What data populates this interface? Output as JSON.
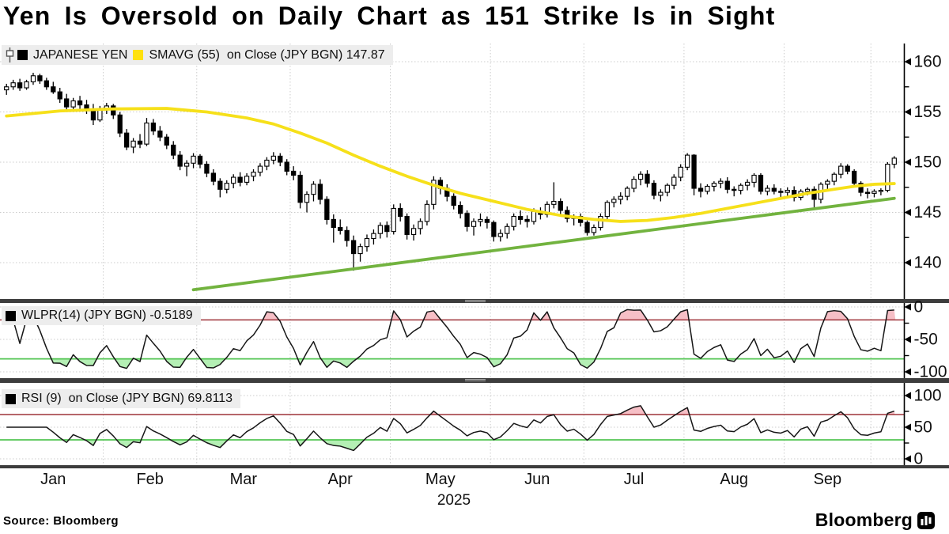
{
  "title": "Yen Is Oversold on Daily Chart as 151 Strike Is in Sight",
  "source": "Source: Bloomberg",
  "logo": "Bloomberg",
  "panels": {
    "main": {
      "legend_price": "JAPANESE YEN",
      "legend_smavg": "SMAVG (55)  on Close (JPY BGN) 147.87",
      "yticks": [
        160,
        155,
        150,
        145,
        140
      ],
      "yticks_minor": [
        157.5,
        152.5,
        147.5,
        142.5
      ]
    },
    "wlpr": {
      "legend": "WLPR(14) (JPY BGN) -0.5189",
      "yticks": [
        0,
        -50,
        -100
      ],
      "yticks_minor": [
        -25,
        -75
      ],
      "overbought": -20,
      "oversold": -80
    },
    "rsi": {
      "legend": "RSI (9)  on Close (JPY BGN) 69.8113",
      "yticks": [
        100,
        50,
        0
      ],
      "yticks_minor": [
        75,
        25
      ],
      "overbought": 70,
      "oversold": 30
    }
  },
  "x_axis": {
    "months": [
      "Jan",
      "Feb",
      "Mar",
      "Apr",
      "May",
      "Jun",
      "Jul",
      "Aug",
      "Sep"
    ],
    "year": "2025",
    "month_start_idx": [
      0,
      15,
      29,
      43,
      58,
      73,
      87,
      102,
      117,
      130
    ]
  },
  "colors": {
    "candle_up": "#ffffff",
    "candle_down": "#000000",
    "candle_stroke": "#000000",
    "smavg": "#f6e01a",
    "trendline": "#72b33f",
    "indicator_line": "#161616",
    "overbought_line": "#9e3339",
    "oversold_line": "#52c452",
    "overbought_fill": "#f6bfc6",
    "oversold_fill": "#b4efb4",
    "grid": "#cccccc",
    "legend_bg": "#ededed",
    "separator": "#3d3d3d"
  },
  "chart_data": [
    {
      "type": "candlestick",
      "name": "JAPANESE YEN (JPY BGN), daily, Jan 2025 - early Oct 2025",
      "ylim": [
        136.5,
        161.8
      ],
      "yticks": [
        140,
        145,
        150,
        155,
        160
      ],
      "ohlc": [
        [
          157.2,
          157.8,
          156.7,
          157.5
        ],
        [
          157.5,
          158.2,
          157.2,
          157.9
        ],
        [
          157.9,
          158.3,
          157.1,
          157.4
        ],
        [
          157.4,
          158.2,
          157.2,
          158.0
        ],
        [
          158.0,
          158.9,
          157.7,
          158.6
        ],
        [
          158.6,
          158.8,
          157.8,
          158.1
        ],
        [
          158.1,
          158.4,
          157.2,
          157.5
        ],
        [
          157.5,
          158.0,
          156.8,
          157.0
        ],
        [
          157.0,
          157.4,
          155.9,
          156.3
        ],
        [
          156.3,
          156.8,
          155.2,
          155.5
        ],
        [
          155.5,
          156.4,
          155.1,
          156.1
        ],
        [
          156.1,
          156.6,
          155.3,
          155.7
        ],
        [
          155.7,
          156.2,
          154.8,
          155.2
        ],
        [
          155.2,
          155.8,
          153.7,
          154.2
        ],
        [
          154.2,
          155.6,
          154.0,
          155.2
        ],
        [
          155.2,
          155.9,
          154.8,
          155.6
        ],
        [
          155.6,
          155.8,
          154.3,
          154.7
        ],
        [
          154.7,
          155.0,
          152.5,
          152.9
        ],
        [
          152.9,
          153.3,
          151.2,
          151.5
        ],
        [
          151.5,
          152.4,
          150.9,
          152.1
        ],
        [
          152.1,
          152.8,
          151.4,
          151.8
        ],
        [
          151.8,
          154.4,
          151.6,
          153.9
        ],
        [
          153.9,
          154.3,
          152.7,
          153.1
        ],
        [
          153.1,
          153.6,
          152.1,
          152.5
        ],
        [
          152.5,
          152.8,
          151.3,
          151.7
        ],
        [
          151.7,
          152.1,
          150.3,
          150.7
        ],
        [
          150.7,
          151.1,
          149.2,
          149.6
        ],
        [
          149.6,
          150.2,
          148.6,
          149.9
        ],
        [
          149.9,
          150.9,
          149.4,
          150.6
        ],
        [
          150.6,
          150.8,
          149.4,
          149.8
        ],
        [
          149.8,
          150.1,
          148.5,
          148.9
        ],
        [
          148.9,
          149.3,
          147.7,
          148.1
        ],
        [
          148.1,
          148.4,
          146.5,
          147.3
        ],
        [
          147.3,
          148.2,
          146.9,
          147.9
        ],
        [
          147.9,
          148.8,
          147.4,
          148.5
        ],
        [
          148.5,
          149.0,
          147.6,
          148.0
        ],
        [
          148.0,
          148.9,
          147.7,
          148.6
        ],
        [
          148.6,
          149.3,
          148.1,
          149.0
        ],
        [
          149.0,
          149.9,
          148.6,
          149.6
        ],
        [
          149.6,
          150.5,
          149.2,
          150.2
        ],
        [
          150.2,
          151.0,
          149.8,
          150.6
        ],
        [
          150.6,
          150.9,
          149.6,
          150.0
        ],
        [
          150.0,
          150.3,
          148.7,
          149.1
        ],
        [
          149.1,
          149.6,
          148.2,
          148.7
        ],
        [
          148.7,
          149.1,
          145.4,
          146.0
        ],
        [
          146.0,
          147.1,
          145.0,
          146.8
        ],
        [
          146.8,
          148.1,
          146.1,
          147.8
        ],
        [
          147.8,
          148.3,
          145.8,
          146.3
        ],
        [
          146.3,
          146.6,
          143.8,
          144.3
        ],
        [
          144.3,
          144.8,
          142.0,
          143.5
        ],
        [
          143.5,
          144.3,
          142.8,
          143.2
        ],
        [
          143.2,
          143.6,
          141.6,
          142.2
        ],
        [
          142.2,
          142.7,
          139.2,
          140.9
        ],
        [
          140.9,
          141.9,
          140.1,
          141.6
        ],
        [
          141.6,
          142.8,
          141.1,
          142.4
        ],
        [
          142.4,
          143.3,
          141.8,
          142.9
        ],
        [
          142.9,
          144.0,
          142.4,
          143.7
        ],
        [
          143.7,
          144.1,
          142.5,
          143.1
        ],
        [
          143.1,
          145.8,
          142.8,
          145.4
        ],
        [
          145.4,
          145.9,
          144.1,
          144.6
        ],
        [
          144.6,
          144.9,
          142.3,
          142.8
        ],
        [
          142.8,
          143.8,
          142.2,
          143.4
        ],
        [
          143.4,
          144.4,
          142.8,
          144.1
        ],
        [
          144.1,
          146.2,
          143.7,
          145.8
        ],
        [
          145.8,
          148.6,
          145.3,
          148.2
        ],
        [
          148.2,
          148.5,
          146.8,
          147.4
        ],
        [
          147.4,
          147.8,
          146.1,
          146.6
        ],
        [
          146.6,
          146.9,
          145.3,
          145.7
        ],
        [
          145.7,
          146.1,
          144.4,
          144.9
        ],
        [
          144.9,
          145.2,
          143.1,
          143.6
        ],
        [
          143.6,
          144.4,
          142.7,
          144.1
        ],
        [
          144.1,
          144.9,
          143.6,
          144.3
        ],
        [
          144.3,
          144.6,
          143.4,
          144.0
        ],
        [
          144.0,
          144.2,
          142.1,
          142.6
        ],
        [
          142.6,
          143.3,
          142.1,
          142.9
        ],
        [
          142.9,
          143.9,
          142.4,
          143.6
        ],
        [
          143.6,
          144.9,
          143.2,
          144.6
        ],
        [
          144.6,
          145.2,
          143.8,
          144.3
        ],
        [
          144.3,
          144.7,
          143.5,
          144.1
        ],
        [
          144.1,
          145.4,
          143.8,
          145.1
        ],
        [
          145.1,
          145.5,
          144.3,
          144.8
        ],
        [
          144.8,
          146.1,
          144.5,
          145.8
        ],
        [
          145.8,
          148.0,
          145.4,
          146.1
        ],
        [
          146.1,
          146.4,
          144.8,
          145.2
        ],
        [
          145.2,
          145.6,
          144.0,
          144.4
        ],
        [
          144.4,
          144.8,
          143.7,
          144.6
        ],
        [
          144.6,
          144.9,
          143.6,
          144.0
        ],
        [
          144.0,
          144.2,
          142.7,
          143.0
        ],
        [
          143.0,
          143.8,
          142.7,
          143.5
        ],
        [
          143.5,
          144.9,
          143.2,
          144.6
        ],
        [
          144.6,
          146.2,
          144.3,
          146.0
        ],
        [
          146.0,
          146.6,
          145.5,
          146.3
        ],
        [
          146.3,
          147.0,
          145.8,
          146.6
        ],
        [
          146.6,
          147.6,
          146.2,
          147.4
        ],
        [
          147.4,
          148.6,
          147.0,
          148.3
        ],
        [
          148.3,
          149.1,
          147.7,
          148.8
        ],
        [
          148.8,
          149.2,
          147.5,
          147.9
        ],
        [
          147.9,
          148.2,
          146.3,
          146.7
        ],
        [
          146.7,
          147.3,
          146.1,
          147.0
        ],
        [
          147.0,
          147.9,
          146.6,
          147.7
        ],
        [
          147.7,
          148.8,
          147.3,
          148.5
        ],
        [
          148.5,
          149.8,
          148.1,
          149.5
        ],
        [
          149.5,
          150.9,
          149.2,
          150.7
        ],
        [
          150.7,
          150.8,
          146.7,
          147.4
        ],
        [
          147.4,
          147.9,
          146.5,
          147.1
        ],
        [
          147.1,
          147.8,
          146.8,
          147.6
        ],
        [
          147.6,
          148.1,
          147.1,
          147.9
        ],
        [
          147.9,
          148.4,
          147.4,
          148.1
        ],
        [
          148.1,
          148.5,
          146.9,
          147.3
        ],
        [
          147.3,
          147.6,
          146.6,
          147.2
        ],
        [
          147.2,
          147.9,
          146.8,
          147.7
        ],
        [
          147.7,
          148.3,
          147.2,
          148.0
        ],
        [
          148.0,
          148.9,
          147.5,
          148.7
        ],
        [
          148.7,
          148.9,
          146.8,
          147.1
        ],
        [
          147.1,
          147.7,
          146.7,
          147.4
        ],
        [
          147.4,
          147.8,
          146.8,
          147.1
        ],
        [
          147.1,
          147.4,
          146.4,
          147.0
        ],
        [
          147.0,
          147.5,
          146.5,
          147.2
        ],
        [
          147.2,
          147.6,
          146.1,
          146.5
        ],
        [
          146.5,
          147.3,
          146.2,
          147.1
        ],
        [
          147.1,
          147.5,
          146.7,
          147.3
        ],
        [
          147.3,
          147.6,
          145.5,
          146.3
        ],
        [
          146.3,
          148.0,
          145.9,
          147.8
        ],
        [
          147.8,
          148.3,
          147.3,
          148.1
        ],
        [
          148.1,
          149.0,
          147.7,
          148.8
        ],
        [
          148.8,
          149.9,
          148.4,
          149.6
        ],
        [
          149.6,
          149.8,
          148.8,
          149.1
        ],
        [
          149.1,
          149.3,
          147.5,
          147.9
        ],
        [
          147.9,
          148.1,
          146.6,
          147.0
        ],
        [
          147.0,
          147.4,
          146.4,
          146.9
        ],
        [
          146.9,
          147.3,
          146.5,
          147.1
        ],
        [
          147.1,
          147.4,
          146.7,
          147.2
        ],
        [
          147.2,
          150.0,
          147.0,
          149.8
        ],
        [
          149.8,
          150.6,
          149.4,
          150.4
        ]
      ]
    },
    {
      "type": "line",
      "name": "SMAVG (55) on Close (JPY BGN)",
      "last_value": 147.87,
      "points": [
        [
          0,
          154.6
        ],
        [
          8,
          155.1
        ],
        [
          16,
          155.3
        ],
        [
          24,
          155.35
        ],
        [
          30,
          155.0
        ],
        [
          36,
          154.4
        ],
        [
          40,
          153.8
        ],
        [
          44,
          152.9
        ],
        [
          48,
          151.9
        ],
        [
          52,
          150.7
        ],
        [
          56,
          149.6
        ],
        [
          60,
          148.6
        ],
        [
          64,
          147.7
        ],
        [
          68,
          146.9
        ],
        [
          73,
          146.1
        ],
        [
          78,
          145.3
        ],
        [
          83,
          144.7
        ],
        [
          88,
          144.3
        ],
        [
          92,
          144.1
        ],
        [
          96,
          144.2
        ],
        [
          100,
          144.5
        ],
        [
          104,
          144.9
        ],
        [
          108,
          145.4
        ],
        [
          112,
          145.9
        ],
        [
          116,
          146.4
        ],
        [
          120,
          146.9
        ],
        [
          124,
          147.3
        ],
        [
          127,
          147.6
        ],
        [
          130,
          147.8
        ],
        [
          133,
          147.87
        ]
      ]
    },
    {
      "type": "line",
      "name": "rising support trendline",
      "points": [
        [
          28,
          137.3
        ],
        [
          133,
          146.4
        ]
      ]
    },
    {
      "type": "line",
      "name": "WLPR(14) Williams %R",
      "derived_from": "ohlc",
      "render_window": 10,
      "last_value": -0.5189,
      "levels": {
        "overbought": -20,
        "oversold": -80
      },
      "ylim": [
        -100,
        0
      ],
      "yticks": [
        0,
        -50,
        -100
      ]
    },
    {
      "type": "line",
      "name": "RSI(9) on Close",
      "derived_from": "ohlc",
      "render_period": 6,
      "last_value": 69.8113,
      "levels": {
        "overbought": 70,
        "oversold": 30
      },
      "ylim": [
        0,
        100
      ],
      "yticks": [
        100,
        50,
        0
      ]
    }
  ]
}
